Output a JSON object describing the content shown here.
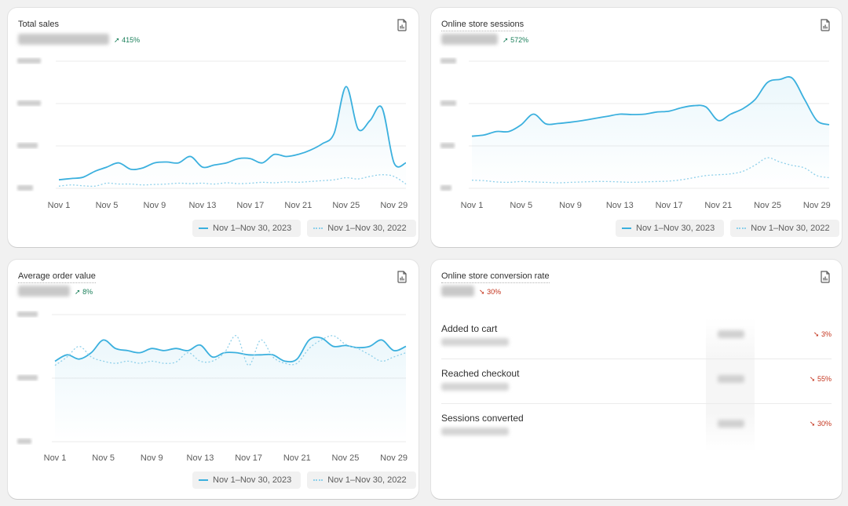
{
  "cards": {
    "total_sales": {
      "title": "Total sales",
      "change": "415%",
      "change_direction": "up",
      "icon": "export-report-icon"
    },
    "sessions": {
      "title": "Online store sessions",
      "change": "572%",
      "change_direction": "up",
      "icon": "export-report-icon"
    },
    "aov": {
      "title": "Average order value",
      "change": "8%",
      "change_direction": "up",
      "icon": "export-report-icon"
    },
    "conversion": {
      "title": "Online store conversion rate",
      "change": "30%",
      "change_direction": "down",
      "icon": "export-report-icon",
      "funnel": [
        {
          "label": "Added to cart",
          "change": "3%"
        },
        {
          "label": "Reached checkout",
          "change": "55%"
        },
        {
          "label": "Sessions converted",
          "change": "30%"
        }
      ]
    }
  },
  "legend": {
    "current": "Nov 1–Nov 30, 2023",
    "previous": "Nov 1–Nov 30, 2022"
  },
  "colors": {
    "current_line": "#3bb0de",
    "previous_line": "#8fd0ea",
    "up": "#1a7f5a",
    "down": "#c4341d"
  },
  "chart_data": [
    {
      "type": "line",
      "name": "total_sales",
      "x": [
        "Nov 1",
        "Nov 2",
        "Nov 3",
        "Nov 4",
        "Nov 5",
        "Nov 6",
        "Nov 7",
        "Nov 8",
        "Nov 9",
        "Nov 10",
        "Nov 11",
        "Nov 12",
        "Nov 13",
        "Nov 14",
        "Nov 15",
        "Nov 16",
        "Nov 17",
        "Nov 18",
        "Nov 19",
        "Nov 20",
        "Nov 21",
        "Nov 22",
        "Nov 23",
        "Nov 24",
        "Nov 25",
        "Nov 26",
        "Nov 27",
        "Nov 28",
        "Nov 29",
        "Nov 30"
      ],
      "xticks": [
        "Nov 1",
        "Nov 5",
        "Nov 9",
        "Nov 13",
        "Nov 17",
        "Nov 21",
        "Nov 25",
        "Nov 29"
      ],
      "ylim": [
        0,
        30
      ],
      "series": [
        {
          "name": "Nov 1–Nov 30, 2023",
          "style": "solid",
          "values": [
            2,
            2.3,
            2.6,
            4,
            5,
            6,
            4.5,
            4.8,
            6,
            6.2,
            6,
            7.5,
            5,
            5.5,
            6,
            7,
            7,
            6,
            8,
            7.5,
            8,
            9,
            10.5,
            13,
            24,
            14,
            16,
            19,
            6,
            6
          ]
        },
        {
          "name": "Nov 1–Nov 30, 2022",
          "style": "dotted",
          "values": [
            0.5,
            0.8,
            0.6,
            0.5,
            1.2,
            1.0,
            1.0,
            0.8,
            0.9,
            1.0,
            1.2,
            1.1,
            1.2,
            1.0,
            1.3,
            1.1,
            1.2,
            1.4,
            1.3,
            1.5,
            1.4,
            1.6,
            1.8,
            2.0,
            2.5,
            2.2,
            2.8,
            3.2,
            2.8,
            1.0
          ]
        }
      ]
    },
    {
      "type": "line",
      "name": "online_store_sessions",
      "x": [
        "Nov 1",
        "Nov 2",
        "Nov 3",
        "Nov 4",
        "Nov 5",
        "Nov 6",
        "Nov 7",
        "Nov 8",
        "Nov 9",
        "Nov 10",
        "Nov 11",
        "Nov 12",
        "Nov 13",
        "Nov 14",
        "Nov 15",
        "Nov 16",
        "Nov 17",
        "Nov 18",
        "Nov 19",
        "Nov 20",
        "Nov 21",
        "Nov 22",
        "Nov 23",
        "Nov 24",
        "Nov 25",
        "Nov 26",
        "Nov 27",
        "Nov 28",
        "Nov 29",
        "Nov 30"
      ],
      "xticks": [
        "Nov 1",
        "Nov 5",
        "Nov 9",
        "Nov 13",
        "Nov 17",
        "Nov 21",
        "Nov 25",
        "Nov 29"
      ],
      "ylim": [
        0,
        30
      ],
      "series": [
        {
          "name": "Nov 1–Nov 30, 2023",
          "style": "solid",
          "values": [
            12.3,
            12.6,
            13.4,
            13.4,
            15,
            17.5,
            15.2,
            15.3,
            15.6,
            16,
            16.5,
            17,
            17.5,
            17.4,
            17.5,
            18,
            18.2,
            19,
            19.5,
            19.2,
            16,
            17.5,
            18.8,
            21,
            25,
            25.7,
            26,
            21,
            16,
            15
          ]
        },
        {
          "name": "Nov 1–Nov 30, 2022",
          "style": "dotted",
          "values": [
            1.9,
            1.8,
            1.5,
            1.4,
            1.6,
            1.5,
            1.4,
            1.3,
            1.4,
            1.5,
            1.6,
            1.6,
            1.5,
            1.4,
            1.5,
            1.6,
            1.7,
            2.0,
            2.5,
            3.0,
            3.2,
            3.4,
            4.0,
            5.5,
            7.2,
            6.2,
            5.4,
            4.8,
            3.0,
            2.5
          ]
        }
      ]
    },
    {
      "type": "line",
      "name": "average_order_value",
      "x": [
        "Nov 1",
        "Nov 2",
        "Nov 3",
        "Nov 4",
        "Nov 5",
        "Nov 6",
        "Nov 7",
        "Nov 8",
        "Nov 9",
        "Nov 10",
        "Nov 11",
        "Nov 12",
        "Nov 13",
        "Nov 14",
        "Nov 15",
        "Nov 16",
        "Nov 17",
        "Nov 18",
        "Nov 19",
        "Nov 20",
        "Nov 21",
        "Nov 22",
        "Nov 23",
        "Nov 24",
        "Nov 25",
        "Nov 26",
        "Nov 27",
        "Nov 28",
        "Nov 29",
        "Nov 30"
      ],
      "xticks": [
        "Nov 1",
        "Nov 5",
        "Nov 9",
        "Nov 13",
        "Nov 17",
        "Nov 21",
        "Nov 25",
        "Nov 29"
      ],
      "ylim": [
        0,
        30
      ],
      "series": [
        {
          "name": "Nov 1–Nov 30, 2023",
          "style": "solid",
          "values": [
            19,
            20.5,
            19.5,
            21,
            24,
            22,
            21.5,
            21,
            22,
            21.5,
            22,
            21.5,
            22.8,
            20,
            21,
            21,
            20.5,
            20.5,
            20.5,
            19,
            19.5,
            24,
            24.5,
            22.5,
            22.7,
            22.2,
            22.5,
            24,
            21.5,
            22.5
          ]
        },
        {
          "name": "Nov 1–Nov 30, 2022",
          "style": "dotted",
          "values": [
            18,
            20,
            22.5,
            20,
            19,
            18.5,
            19,
            18.5,
            19,
            18.5,
            18.8,
            21,
            19,
            19,
            21,
            25,
            18,
            24,
            20,
            18.5,
            18.5,
            22,
            24,
            25,
            23,
            22,
            20.5,
            19,
            20,
            21
          ]
        }
      ]
    }
  ]
}
